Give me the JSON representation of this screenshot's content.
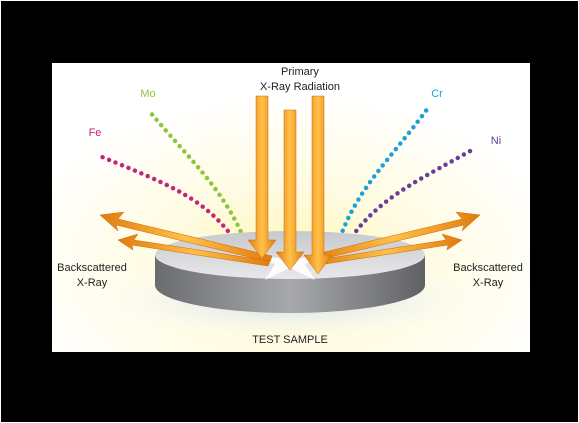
{
  "primary": {
    "line1": "Primary",
    "line2": "X-Ray Radiation"
  },
  "elements": [
    {
      "label": "Fe"
    },
    {
      "label": "Mo"
    },
    {
      "label": "Cr"
    },
    {
      "label": "Ni"
    }
  ],
  "backscatter_left": {
    "line1": "Backscattered",
    "line2": "X-Ray"
  },
  "backscatter_right": {
    "line1": "Backscattered",
    "line2": "X-Ray"
  },
  "sample": {
    "label": "TEST SAMPLE"
  }
}
